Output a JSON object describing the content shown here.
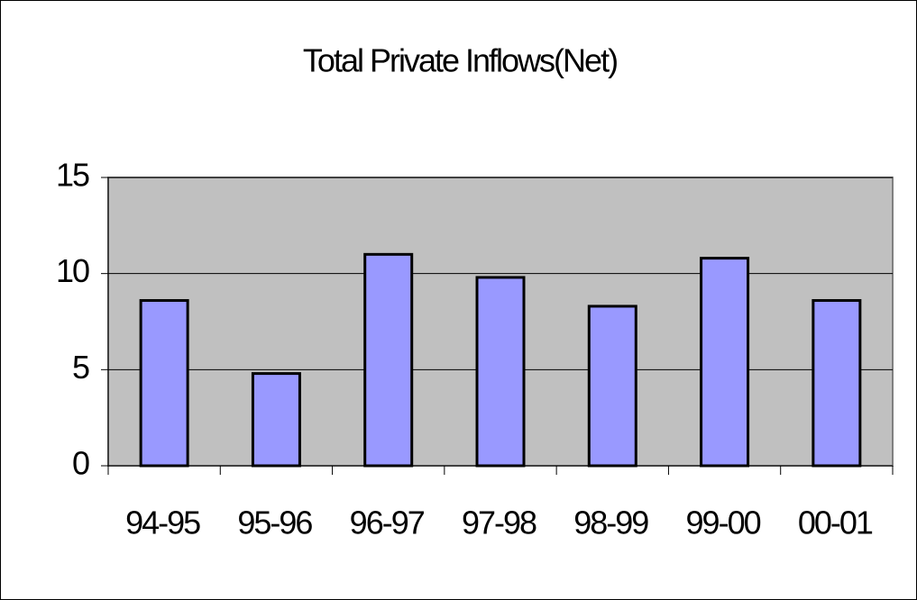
{
  "chart_data": {
    "type": "bar",
    "title": "Total Private Inflows(Net)",
    "categories": [
      "94-95",
      "95-96",
      "96-97",
      "97-98",
      "98-99",
      "99-00",
      "00-01"
    ],
    "values": [
      8.6,
      4.8,
      11.0,
      9.8,
      8.3,
      10.8,
      8.6
    ],
    "color": "#9999ff",
    "ylim": [
      0,
      15
    ],
    "yticks": [
      0,
      5,
      10,
      15
    ],
    "grid": true
  }
}
